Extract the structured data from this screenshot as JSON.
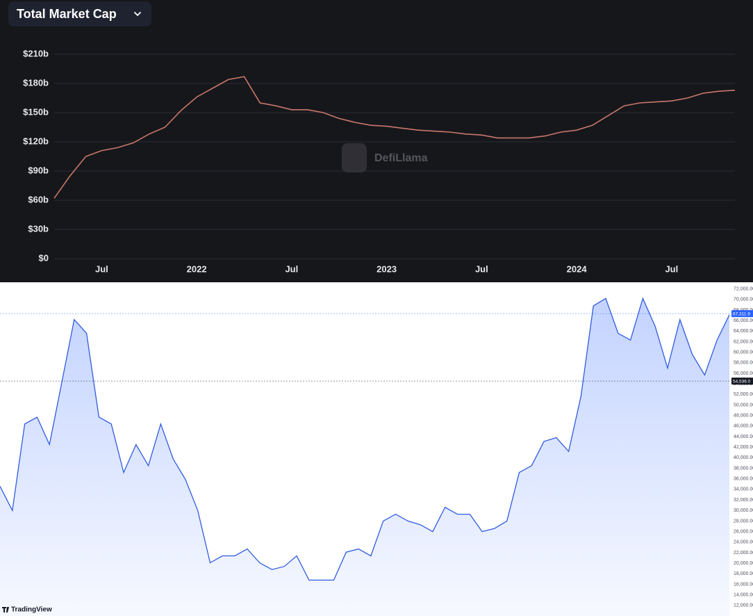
{
  "chart_data": [
    {
      "type": "line",
      "title": "Total Market Cap",
      "watermark": "DefiLlama",
      "background": "#16171b",
      "color": "#c9786a",
      "grid": true,
      "categories": [
        null,
        null,
        null,
        "Jul",
        null,
        null,
        null,
        null,
        null,
        "2022",
        null,
        null,
        null,
        null,
        null,
        "Jul",
        null,
        null,
        null,
        null,
        null,
        "2023",
        null,
        null,
        null,
        null,
        null,
        "Jul",
        null,
        null,
        null,
        null,
        null,
        "2024",
        null,
        null,
        null,
        null,
        null,
        "Jul",
        null,
        null,
        null,
        null
      ],
      "values": [
        62,
        85,
        105,
        111,
        114,
        119,
        128,
        135,
        152,
        166,
        175,
        184,
        187,
        160,
        157,
        153,
        153,
        150,
        144,
        140,
        137,
        136,
        134,
        132,
        131,
        130,
        128,
        127,
        124,
        124,
        124,
        126,
        130,
        132,
        137,
        147,
        157,
        160,
        161,
        162,
        165,
        170,
        172,
        173
      ],
      "ylim": [
        0,
        210
      ],
      "yticks": [
        {
          "value": 0,
          "label": "$0"
        },
        {
          "value": 30,
          "label": "$30b"
        },
        {
          "value": 60,
          "label": "$60b"
        },
        {
          "value": 90,
          "label": "$90b"
        },
        {
          "value": 120,
          "label": "$120b"
        },
        {
          "value": 150,
          "label": "$150b"
        },
        {
          "value": 180,
          "label": "$180b"
        },
        {
          "value": 210,
          "label": "$210b"
        }
      ]
    },
    {
      "type": "area",
      "watermark": "TradingView",
      "background": "#ffffff",
      "color": "#2f5be0",
      "grid": false,
      "values": [
        34600,
        30000,
        46400,
        47700,
        42500,
        54300,
        66200,
        63600,
        47700,
        46400,
        37200,
        42500,
        38500,
        46400,
        39800,
        35900,
        30000,
        20100,
        21400,
        21400,
        22700,
        20100,
        18800,
        19400,
        21400,
        16800,
        16800,
        16800,
        22100,
        22700,
        21400,
        28000,
        29300,
        28000,
        27300,
        26000,
        30600,
        29300,
        29300,
        26000,
        26600,
        28000,
        37200,
        38500,
        43100,
        43800,
        41200,
        51700,
        68800,
        70200,
        63600,
        62300,
        70200,
        64900,
        57000,
        66200,
        59600,
        55700,
        62300,
        67100
      ],
      "ylim": [
        10000,
        73000
      ],
      "yticks": [
        {
          "value": 12000,
          "label": "12,000.00"
        },
        {
          "value": 14000,
          "label": "14,000.00"
        },
        {
          "value": 16000,
          "label": "16,000.00"
        },
        {
          "value": 18000,
          "label": "18,000.00"
        },
        {
          "value": 20000,
          "label": "20,000.00"
        },
        {
          "value": 22000,
          "label": "22,000.00"
        },
        {
          "value": 24000,
          "label": "24,000.00"
        },
        {
          "value": 26000,
          "label": "26,000.00"
        },
        {
          "value": 28000,
          "label": "28,000.00"
        },
        {
          "value": 30000,
          "label": "30,000.00"
        },
        {
          "value": 32000,
          "label": "32,000.00"
        },
        {
          "value": 34000,
          "label": "34,000.00"
        },
        {
          "value": 36000,
          "label": "36,000.00"
        },
        {
          "value": 38000,
          "label": "38,000.00"
        },
        {
          "value": 40000,
          "label": "40,000.00"
        },
        {
          "value": 42000,
          "label": "42,000.00"
        },
        {
          "value": 44000,
          "label": "44,000.00"
        },
        {
          "value": 46000,
          "label": "46,000.00"
        },
        {
          "value": 48000,
          "label": "48,000.00"
        },
        {
          "value": 50000,
          "label": "50,000.00"
        },
        {
          "value": 52000,
          "label": "52,000.00"
        },
        {
          "value": 54000,
          "label": "54,000.00"
        },
        {
          "value": 56000,
          "label": "56,000.00"
        },
        {
          "value": 58000,
          "label": "58,000.00"
        },
        {
          "value": 60000,
          "label": "60,000.00"
        },
        {
          "value": 62000,
          "label": "62,000.00"
        },
        {
          "value": 64000,
          "label": "64,000.00"
        },
        {
          "value": 66000,
          "label": "66,000.00"
        },
        {
          "value": 68000,
          "label": "68,000.00"
        },
        {
          "value": 70000,
          "label": "70,000.00"
        },
        {
          "value": 72000,
          "label": "72,000.00"
        }
      ],
      "price_lines": [
        {
          "value": 67311.9,
          "label": "67,311.9",
          "color": "#2962ff"
        },
        {
          "value": 54536.0,
          "label": "54,536.0",
          "color": "#131722"
        }
      ]
    }
  ]
}
